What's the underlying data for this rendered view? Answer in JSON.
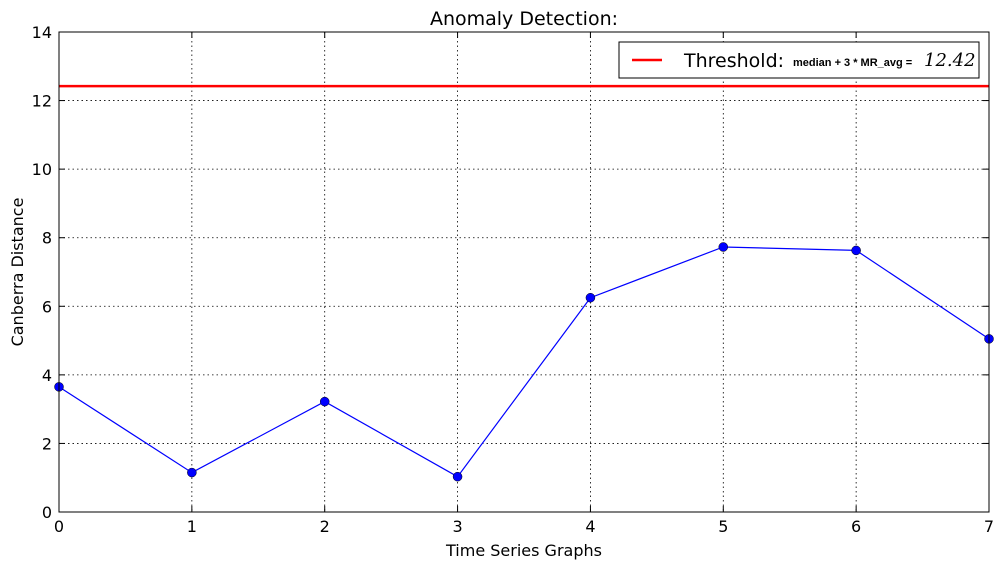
{
  "chart_data": {
    "type": "line",
    "title": "Anomaly Detection:",
    "xlabel": "Time Series Graphs",
    "ylabel": "Canberra Distance",
    "xlim": [
      0,
      7
    ],
    "ylim": [
      0,
      14
    ],
    "x_ticks": [
      "0",
      "1",
      "2",
      "3",
      "4",
      "5",
      "6",
      "7"
    ],
    "y_ticks": [
      "0",
      "2",
      "4",
      "6",
      "8",
      "10",
      "12",
      "14"
    ],
    "grid": true,
    "legend_position": "top-right",
    "series": [
      {
        "x": [
          0,
          1,
          2,
          3,
          4,
          5,
          6,
          7
        ],
        "values": [
          3.65,
          1.15,
          3.22,
          1.03,
          6.25,
          7.73,
          7.63,
          5.05
        ],
        "color": "#0000ff",
        "marker": "circle"
      }
    ],
    "threshold": {
      "value": 12.42,
      "color": "#ff0000",
      "legend_label": "Threshold:",
      "legend_formula": "median + 3 * MR_avg =",
      "legend_value": "12.42"
    }
  }
}
